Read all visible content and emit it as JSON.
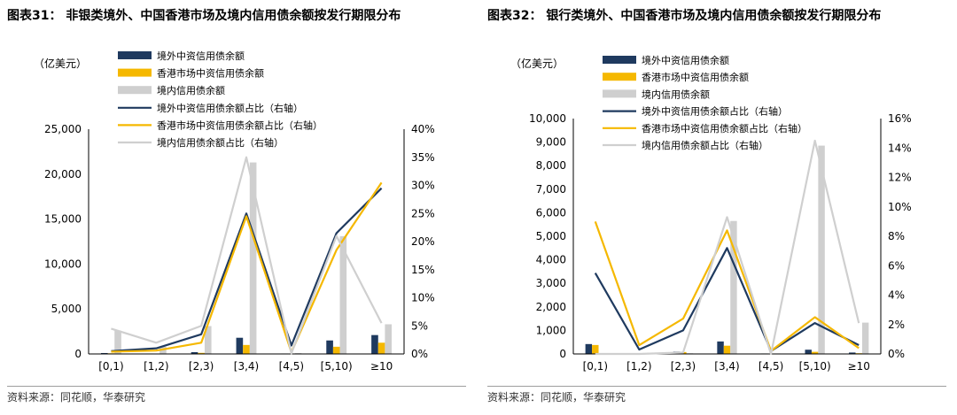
{
  "charts": [
    {
      "title": "图表31：  非银类境外、中国香港市场及境内信用债余额按发行期限分布",
      "source": "资料来源：同花顺，华泰研究",
      "chart_data": {
        "type": "bar",
        "categories": [
          "[0,1)",
          "[1,2)",
          "[2,3)",
          "[3,4)",
          "[4,5)",
          "[5,10)",
          "≥10"
        ],
        "ylabel": "（亿美元）",
        "ylim": [
          0,
          25000
        ],
        "yticks": [
          0,
          5000,
          10000,
          15000,
          20000,
          25000
        ],
        "ytick_labels": [
          "0",
          "5,000",
          "10,000",
          "15,000",
          "20,000",
          "25,000"
        ],
        "y2lim": [
          0,
          40
        ],
        "y2ticks": [
          0,
          5,
          10,
          15,
          20,
          25,
          30,
          35,
          40
        ],
        "y2tick_labels": [
          "0%",
          "5%",
          "10%",
          "15%",
          "20%",
          "25%",
          "30%",
          "35%",
          "40%"
        ],
        "legend_position": "top",
        "grid": false,
        "bar_series": [
          {
            "name": "境外中资信用债余额",
            "color": "#1f3a5f",
            "values": [
              100,
              50,
              200,
              1800,
              50,
              1500,
              2100
            ]
          },
          {
            "name": "香港市场中资信用债余额",
            "color": "#f5b800",
            "values": [
              70,
              40,
              120,
              1000,
              20,
              800,
              1250
            ]
          },
          {
            "name": "境内信用债余额",
            "color": "#cfcfcf",
            "values": [
              2600,
              800,
              3100,
              21300,
              100,
              13100,
              3300
            ]
          }
        ],
        "line_series": [
          {
            "name": "境外中资信用债余额占比（右轴）",
            "color": "#1f3a5f",
            "values": [
              0.5,
              1.0,
              3.5,
              25.0,
              1.5,
              21.5,
              29.5
            ]
          },
          {
            "name": "香港市场中资信用债余额占比（右轴）",
            "color": "#f5b800",
            "values": [
              0.4,
              0.6,
              2.0,
              24.5,
              0.3,
              18.5,
              30.5
            ]
          },
          {
            "name": "境内信用债余额占比（右轴）",
            "color": "#cfcfcf",
            "values": [
              4.5,
              2.0,
              5.0,
              35.0,
              0.1,
              21.0,
              5.5
            ]
          }
        ]
      }
    },
    {
      "title": "图表32：  银行类境外、中国香港市场及境内信用债余额按发行期限分布",
      "source": "资料来源：同花顺，华泰研究",
      "chart_data": {
        "type": "bar",
        "categories": [
          "[0,1)",
          "[1,2)",
          "[2,3)",
          "[3,4)",
          "[4,5)",
          "[5,10)",
          "≥10"
        ],
        "ylabel": "（亿美元）",
        "ylim": [
          0,
          10000
        ],
        "yticks": [
          0,
          1000,
          2000,
          3000,
          4000,
          5000,
          6000,
          7000,
          8000,
          9000,
          10000
        ],
        "ytick_labels": [
          "0",
          "1,000",
          "2,000",
          "3,000",
          "4,000",
          "5,000",
          "6,000",
          "7,000",
          "8,000",
          "9,000",
          "10,000"
        ],
        "y2lim": [
          0,
          16
        ],
        "y2ticks": [
          0,
          2,
          4,
          6,
          8,
          10,
          12,
          14,
          16
        ],
        "y2tick_labels": [
          "0%",
          "2%",
          "4%",
          "6%",
          "8%",
          "10%",
          "12%",
          "14%",
          "16%"
        ],
        "legend_position": "top",
        "grid": false,
        "bar_series": [
          {
            "name": "境外中资信用债余额",
            "color": "#1f3a5f",
            "values": [
              420,
              20,
              100,
              530,
              20,
              180,
              60
            ]
          },
          {
            "name": "香港市场中资信用债余额",
            "color": "#f5b800",
            "values": [
              380,
              15,
              80,
              350,
              10,
              90,
              30
            ]
          },
          {
            "name": "境内信用债余额",
            "color": "#cfcfcf",
            "values": [
              20,
              20,
              30,
              5650,
              20,
              8850,
              1330
            ]
          }
        ],
        "line_series": [
          {
            "name": "境外中资信用债余额占比（右轴）",
            "color": "#1f3a5f",
            "values": [
              5.5,
              0.3,
              1.6,
              7.2,
              0.2,
              2.1,
              0.6
            ]
          },
          {
            "name": "香港市场中资信用债余额占比（右轴）",
            "color": "#f5b800",
            "values": [
              9.0,
              0.6,
              2.4,
              8.4,
              0.2,
              2.5,
              0.4
            ]
          },
          {
            "name": "境内信用债余额占比（右轴）",
            "color": "#cfcfcf",
            "values": [
              0.0,
              0.0,
              0.1,
              9.3,
              0.0,
              14.5,
              2.1
            ]
          }
        ]
      }
    }
  ]
}
